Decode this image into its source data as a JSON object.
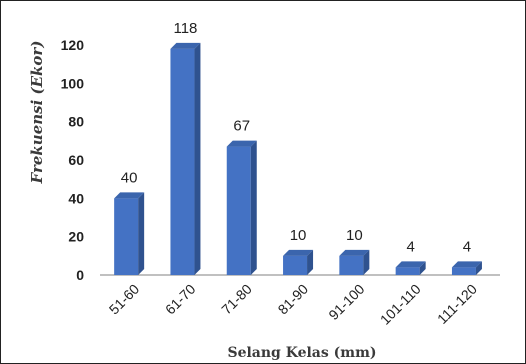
{
  "chart_data": {
    "type": "bar",
    "title": "",
    "xlabel": "Selang Kelas (mm)",
    "ylabel": "Frekuensi (Ekor)",
    "categories": [
      "51-60",
      "61-70",
      "71-80",
      "81-90",
      "91-100",
      "101-110",
      "111-120"
    ],
    "values": [
      40,
      118,
      67,
      10,
      10,
      4,
      4
    ],
    "data_labels": [
      "40",
      "118",
      "67",
      "10",
      "10",
      "4",
      "4"
    ],
    "yticks": [
      "0",
      "20",
      "40",
      "60",
      "80",
      "100",
      "120"
    ],
    "ylim": [
      0,
      130
    ],
    "grid": false,
    "legend": "none",
    "colors": {
      "bar_front": "#4472c4",
      "bar_side": "#2f528f",
      "bar_top": "#3b65ad",
      "axis": "#808080"
    }
  }
}
